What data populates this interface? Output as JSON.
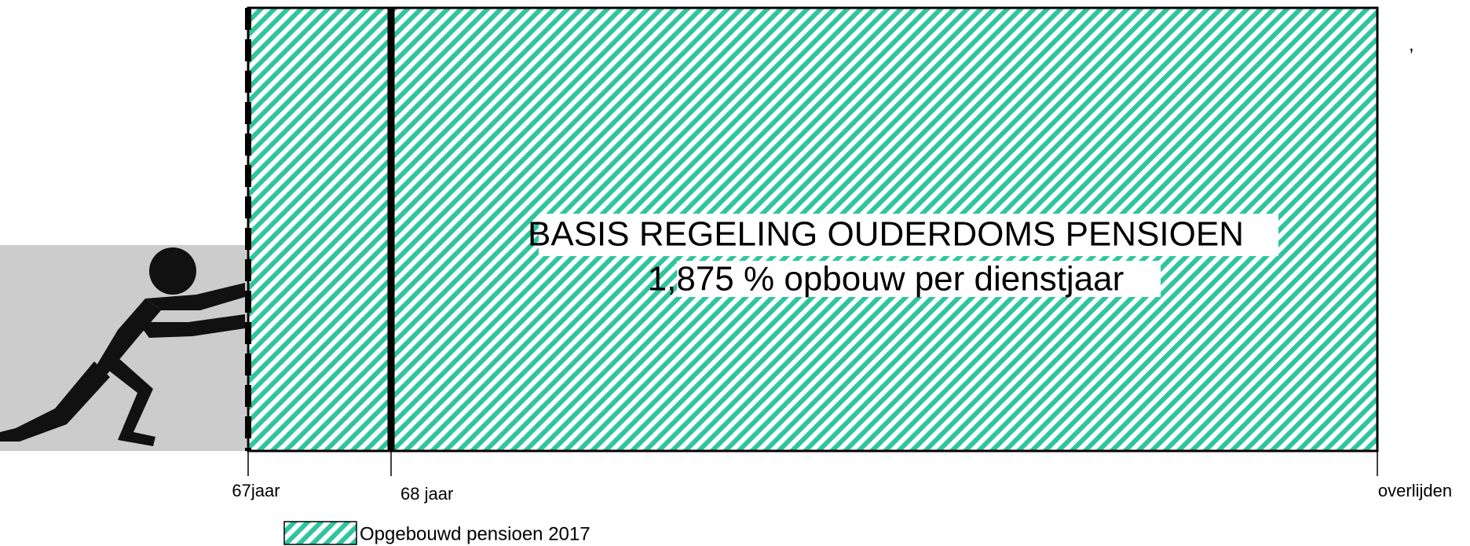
{
  "diagram": {
    "title_lines": [
      "BASIS REGELING OUDERDOMS PENSIOEN",
      "1,875 % opbouw per dienstjaar"
    ],
    "axis_labels": [
      "67jaar",
      "68 jaar",
      "overlijden"
    ],
    "legend": "Opgebouwd pensioen 2017",
    "corner_mark": ","
  }
}
